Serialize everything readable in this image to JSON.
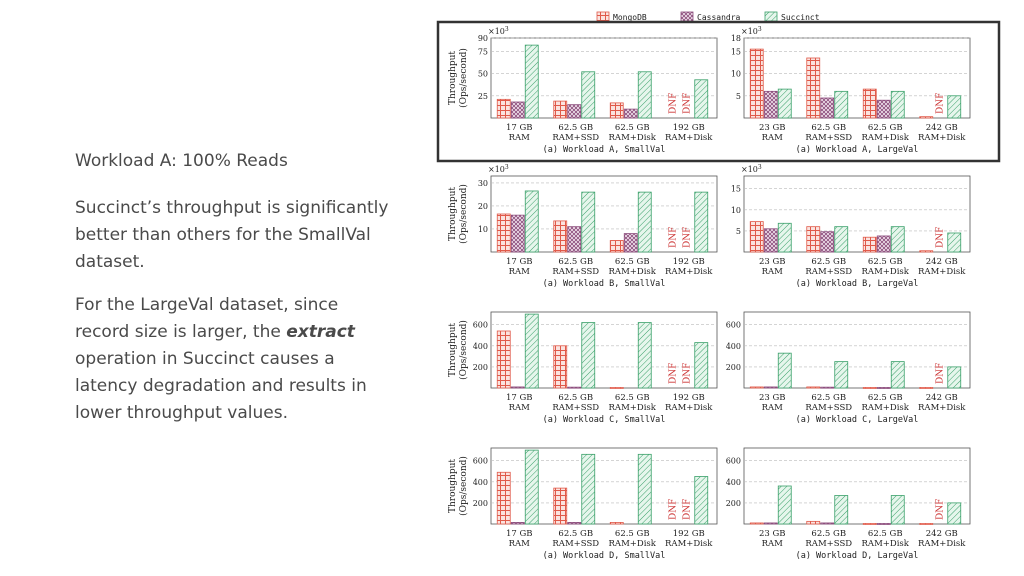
{
  "slide": {
    "heading": "Workload A: 100% Reads",
    "para1": "Succinct’s throughput is significantly better than others for the SmallVal dataset.",
    "para2_before": "For the LargeVal dataset, since record size is larger, the ",
    "para2_em": "extract",
    "para2_after": " operation in Succinct causes a latency degradation and results in lower throughput values."
  },
  "legend": [
    "MongoDB",
    "Cassandra",
    "Succinct"
  ],
  "colors": {
    "MongoDB": "#e05a4a",
    "Cassandra": "#8a4a7a",
    "Succinct": "#3aa06a",
    "dnf": "#cc3333",
    "highlight": "#333333"
  },
  "ylabel": [
    "Throughput",
    "(Ops/second)"
  ],
  "dnf_label": "DNF",
  "chart_data": [
    {
      "type": "bar",
      "caption": "(a) Workload A, SmallVal",
      "multiplier": "×10",
      "exponent": "3",
      "ylim": [
        0,
        90
      ],
      "yticks": [
        25,
        50,
        75,
        90
      ],
      "categories": [
        "17 GB|RAM",
        "62.5 GB|RAM+SSD",
        "62.5 GB|RAM+Disk",
        "192 GB|RAM+Disk"
      ],
      "series": [
        {
          "name": "MongoDB",
          "values": [
            21,
            19,
            17,
            null
          ]
        },
        {
          "name": "Cassandra",
          "values": [
            18,
            15,
            10,
            null
          ]
        },
        {
          "name": "Succinct",
          "values": [
            82,
            52,
            52,
            43
          ]
        }
      ],
      "dnf": [
        [],
        [],
        [],
        [
          "MongoDB",
          "Cassandra"
        ]
      ]
    },
    {
      "type": "bar",
      "caption": "(a) Workload A, LargeVal",
      "multiplier": "×10",
      "exponent": "3",
      "ylim": [
        0,
        18
      ],
      "yticks": [
        5,
        10,
        15,
        18
      ],
      "categories": [
        "23 GB|RAM",
        "62.5 GB|RAM+SSD",
        "62.5 GB|RAM+Disk",
        "242 GB|RAM+Disk"
      ],
      "series": [
        {
          "name": "MongoDB",
          "values": [
            15.5,
            13.5,
            6.5,
            0.3
          ]
        },
        {
          "name": "Cassandra",
          "values": [
            6,
            4.5,
            4,
            null
          ]
        },
        {
          "name": "Succinct",
          "values": [
            6.5,
            6,
            6,
            5
          ]
        }
      ],
      "dnf": [
        [],
        [],
        [],
        [
          "Cassandra"
        ]
      ]
    },
    {
      "type": "bar",
      "caption": "(a) Workload B, SmallVal",
      "multiplier": "×10",
      "exponent": "3",
      "ylim": [
        0,
        33
      ],
      "yticks": [
        10,
        20,
        30
      ],
      "categories": [
        "17 GB|RAM",
        "62.5 GB|RAM+SSD",
        "62.5 GB|RAM+Disk",
        "192 GB|RAM+Disk"
      ],
      "series": [
        {
          "name": "MongoDB",
          "values": [
            16.5,
            13.5,
            5,
            null
          ]
        },
        {
          "name": "Cassandra",
          "values": [
            16,
            11,
            8,
            null
          ]
        },
        {
          "name": "Succinct",
          "values": [
            26.5,
            26,
            26,
            26
          ]
        }
      ],
      "dnf": [
        [],
        [],
        [],
        [
          "MongoDB",
          "Cassandra"
        ]
      ]
    },
    {
      "type": "bar",
      "caption": "(a) Workload B, LargeVal",
      "multiplier": "×10",
      "exponent": "3",
      "ylim": [
        0,
        18
      ],
      "yticks": [
        5,
        10,
        15
      ],
      "categories": [
        "23 GB|RAM",
        "62.5 GB|RAM+SSD",
        "62.5 GB|RAM+Disk",
        "242 GB|RAM+Disk"
      ],
      "series": [
        {
          "name": "MongoDB",
          "values": [
            7.2,
            6,
            3.5,
            0.3
          ]
        },
        {
          "name": "Cassandra",
          "values": [
            5.5,
            4.8,
            3.8,
            null
          ]
        },
        {
          "name": "Succinct",
          "values": [
            6.8,
            6,
            6,
            4.5
          ]
        }
      ],
      "dnf": [
        [],
        [],
        [],
        [
          "Cassandra"
        ]
      ]
    },
    {
      "type": "bar",
      "caption": "(a) Workload C, SmallVal",
      "multiplier": "",
      "exponent": "",
      "ylim": [
        0,
        720
      ],
      "yticks": [
        200,
        400,
        600
      ],
      "categories": [
        "17 GB|RAM",
        "62.5 GB|RAM+SSD",
        "62.5 GB|RAM+Disk",
        "192 GB|RAM+Disk"
      ],
      "series": [
        {
          "name": "MongoDB",
          "values": [
            540,
            400,
            5,
            null
          ]
        },
        {
          "name": "Cassandra",
          "values": [
            10,
            8,
            null,
            null
          ]
        },
        {
          "name": "Succinct",
          "values": [
            700,
            620,
            620,
            430
          ]
        }
      ],
      "dnf": [
        [],
        [],
        [],
        [
          "MongoDB",
          "Cassandra"
        ]
      ]
    },
    {
      "type": "bar",
      "caption": "(a) Workload C, LargeVal",
      "multiplier": "",
      "exponent": "",
      "ylim": [
        0,
        720
      ],
      "yticks": [
        200,
        400,
        600
      ],
      "categories": [
        "23 GB|RAM",
        "62.5 GB|RAM+SSD",
        "62.5 GB|RAM+Disk",
        "242 GB|RAM+Disk"
      ],
      "series": [
        {
          "name": "MongoDB",
          "values": [
            10,
            10,
            5,
            5
          ]
        },
        {
          "name": "Cassandra",
          "values": [
            10,
            8,
            5,
            null
          ]
        },
        {
          "name": "Succinct",
          "values": [
            330,
            250,
            250,
            200
          ]
        }
      ],
      "dnf": [
        [],
        [],
        [],
        [
          "Cassandra"
        ]
      ]
    },
    {
      "type": "bar",
      "caption": "(a) Workload D, SmallVal",
      "multiplier": "",
      "exponent": "",
      "ylim": [
        0,
        720
      ],
      "yticks": [
        200,
        400,
        600
      ],
      "categories": [
        "17 GB|RAM",
        "62.5 GB|RAM+SSD",
        "62.5 GB|RAM+Disk",
        "192 GB|RAM+Disk"
      ],
      "series": [
        {
          "name": "MongoDB",
          "values": [
            490,
            340,
            15,
            null
          ]
        },
        {
          "name": "Cassandra",
          "values": [
            15,
            15,
            null,
            null
          ]
        },
        {
          "name": "Succinct",
          "values": [
            700,
            660,
            660,
            450
          ]
        }
      ],
      "dnf": [
        [],
        [],
        [],
        [
          "MongoDB",
          "Cassandra"
        ]
      ]
    },
    {
      "type": "bar",
      "caption": "(a) Workload D, LargeVal",
      "multiplier": "",
      "exponent": "",
      "ylim": [
        0,
        720
      ],
      "yticks": [
        200,
        400,
        600
      ],
      "categories": [
        "23 GB|RAM",
        "62.5 GB|RAM+SSD",
        "62.5 GB|RAM+Disk",
        "242 GB|RAM+Disk"
      ],
      "series": [
        {
          "name": "MongoDB",
          "values": [
            10,
            25,
            5,
            5
          ]
        },
        {
          "name": "Cassandra",
          "values": [
            10,
            10,
            5,
            null
          ]
        },
        {
          "name": "Succinct",
          "values": [
            360,
            270,
            270,
            200
          ]
        }
      ],
      "dnf": [
        [],
        [],
        [],
        [
          "Cassandra"
        ]
      ]
    }
  ]
}
